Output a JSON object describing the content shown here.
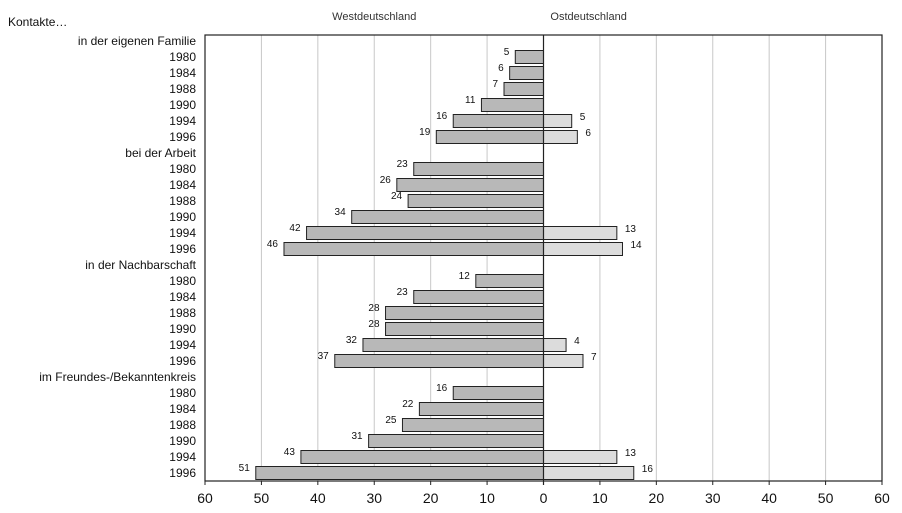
{
  "chart_data": {
    "type": "bar",
    "orientation": "horizontal",
    "layout": "back-to-back",
    "intro_label": "Kontakte…",
    "panels": [
      "Westdeutschland",
      "Ostdeutschland"
    ],
    "xlim": [
      -60,
      60
    ],
    "xticks": [
      "60",
      "50",
      "40",
      "30",
      "20",
      "10",
      "0",
      "10",
      "20",
      "30",
      "40",
      "50",
      "60"
    ],
    "grid": true,
    "colors": {
      "west": "#b8b8b8",
      "east": "#dcdcdc",
      "stroke": "#222222",
      "grid": "#c8c8c8"
    },
    "groups": [
      {
        "label": "in der eigenen Familie",
        "years": [
          "1980",
          "1984",
          "1988",
          "1990",
          "1994",
          "1996"
        ],
        "west": [
          5,
          6,
          7,
          11,
          16,
          19
        ],
        "east": [
          null,
          null,
          null,
          null,
          5,
          6
        ]
      },
      {
        "label": "bei der Arbeit",
        "years": [
          "1980",
          "1984",
          "1988",
          "1990",
          "1994",
          "1996"
        ],
        "west": [
          23,
          26,
          24,
          34,
          42,
          46
        ],
        "east": [
          null,
          null,
          null,
          null,
          13,
          14
        ]
      },
      {
        "label": "in der Nachbarschaft",
        "years": [
          "1980",
          "1984",
          "1988",
          "1990",
          "1994",
          "1996"
        ],
        "west": [
          12,
          23,
          28,
          28,
          32,
          37
        ],
        "east": [
          null,
          null,
          null,
          null,
          4,
          7
        ]
      },
      {
        "label": "im Freundes-/Bekanntenkreis",
        "years": [
          "1980",
          "1984",
          "1988",
          "1990",
          "1994",
          "1996"
        ],
        "west": [
          16,
          22,
          25,
          31,
          43,
          51
        ],
        "east": [
          null,
          null,
          null,
          null,
          13,
          16
        ]
      }
    ]
  }
}
